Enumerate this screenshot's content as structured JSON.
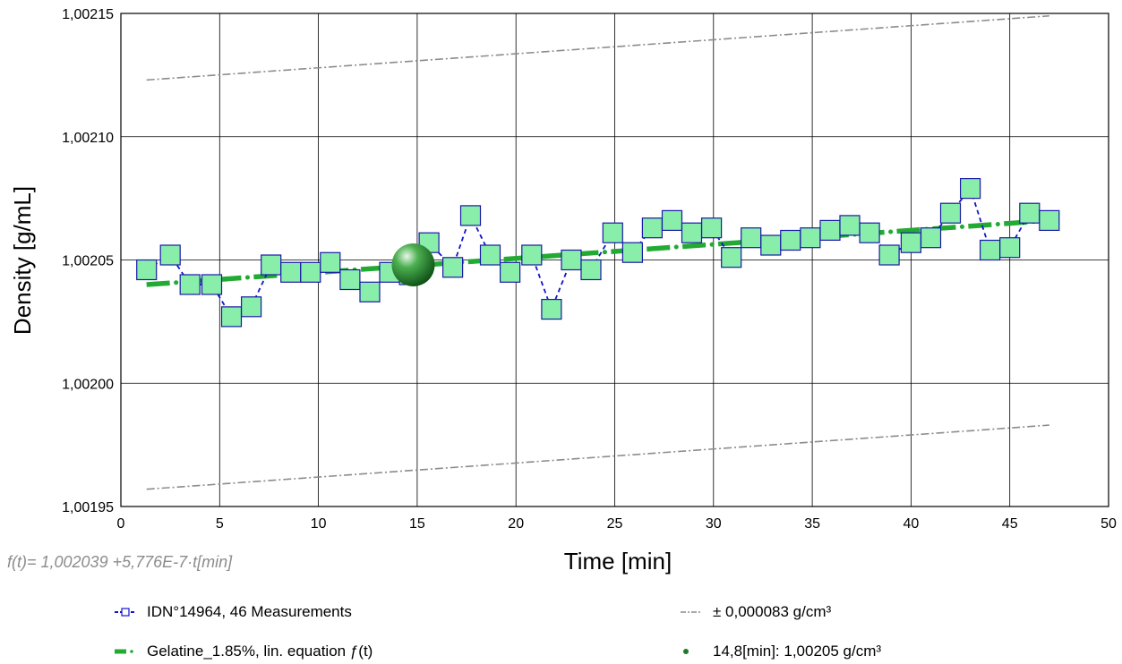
{
  "chart_data": {
    "type": "scatter",
    "xlabel": "Time [min]",
    "ylabel": "Density [g/mL]",
    "xlim": [
      0,
      50
    ],
    "ylim": [
      1.00195,
      1.00215
    ],
    "grid": true,
    "x_ticks": [
      0,
      5,
      10,
      15,
      20,
      25,
      30,
      35,
      40,
      45,
      50
    ],
    "x_tick_labels": [
      "0",
      "5",
      "10",
      "15",
      "20",
      "25",
      "30",
      "35",
      "40",
      "45",
      "50"
    ],
    "y_ticks": [
      1.00195,
      1.002,
      1.00205,
      1.0021,
      1.00215
    ],
    "y_tick_labels": [
      "1,00195",
      "1,00200",
      "1,00205",
      "1,00210",
      "1,00215"
    ],
    "legend_position": "bottom",
    "equation_text": "f(t)= 1,002039 +5,776E-7·t[min]",
    "colors": {
      "measurement_line": "#1414c8",
      "marker_fill": "#88eeaa",
      "marker_stroke": "#1a1aa8",
      "fit_line": "#22aa33",
      "tolerance_line": "#8c8c8c",
      "highlight_point": "#1e7a2a"
    },
    "series": [
      {
        "name": "IDN°14964, 46 Measurements",
        "style": "dashed-line-square-markers",
        "points": [
          [
            1.3,
            1.002046
          ],
          [
            2.5,
            1.002052
          ],
          [
            3.5,
            1.00204
          ],
          [
            4.6,
            1.00204
          ],
          [
            5.6,
            1.002027
          ],
          [
            6.6,
            1.002031
          ],
          [
            7.6,
            1.002048
          ],
          [
            8.6,
            1.002045
          ],
          [
            9.6,
            1.002045
          ],
          [
            10.6,
            1.002049
          ],
          [
            11.6,
            1.002042
          ],
          [
            12.6,
            1.002037
          ],
          [
            13.6,
            1.002045
          ],
          [
            14.6,
            1.002044
          ],
          [
            15.6,
            1.002057
          ],
          [
            16.8,
            1.002047
          ],
          [
            17.7,
            1.002068
          ],
          [
            18.7,
            1.002052
          ],
          [
            19.7,
            1.002045
          ],
          [
            20.8,
            1.002052
          ],
          [
            21.8,
            1.00203
          ],
          [
            22.8,
            1.00205
          ],
          [
            23.8,
            1.002046
          ],
          [
            24.9,
            1.002061
          ],
          [
            25.9,
            1.002053
          ],
          [
            26.9,
            1.002063
          ],
          [
            27.9,
            1.002066
          ],
          [
            28.9,
            1.002061
          ],
          [
            29.9,
            1.002063
          ],
          [
            30.9,
            1.002051
          ],
          [
            31.9,
            1.002059
          ],
          [
            32.9,
            1.002056
          ],
          [
            33.9,
            1.002058
          ],
          [
            34.9,
            1.002059
          ],
          [
            35.9,
            1.002062
          ],
          [
            36.9,
            1.002064
          ],
          [
            37.9,
            1.002061
          ],
          [
            38.9,
            1.002052
          ],
          [
            40.0,
            1.002057
          ],
          [
            41.0,
            1.002059
          ],
          [
            42.0,
            1.002069
          ],
          [
            43.0,
            1.002079
          ],
          [
            44.0,
            1.002054
          ],
          [
            45.0,
            1.002055
          ],
          [
            46.0,
            1.002069
          ],
          [
            47.0,
            1.002066
          ]
        ]
      },
      {
        "name": "Gelatine_1.85%, lin. equation ƒ(t)",
        "style": "dash-dot-thick",
        "line": [
          [
            1.3,
            1.00204
          ],
          [
            47.0,
            1.002066
          ]
        ]
      },
      {
        "name": "± 0,000083 g/cm³",
        "style": "dash-dot-thin-gray",
        "upper": [
          [
            1.3,
            1.002123
          ],
          [
            47.0,
            1.002149
          ]
        ],
        "lower": [
          [
            1.3,
            1.001957
          ],
          [
            47.0,
            1.001983
          ]
        ]
      },
      {
        "name": "14,8[min]: 1,00205 g/cm³",
        "style": "sphere-marker",
        "points": [
          [
            14.8,
            1.002048
          ]
        ]
      }
    ]
  }
}
